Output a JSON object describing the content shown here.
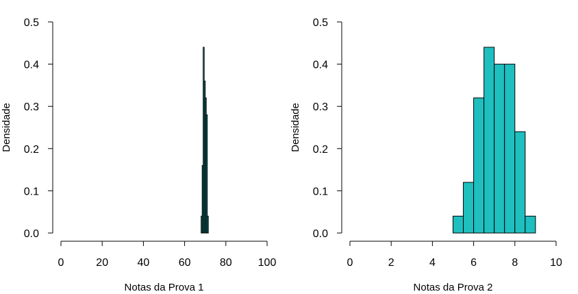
{
  "chart_data": [
    {
      "type": "histogram",
      "xlabel": "Notas da Prova 1",
      "ylabel": "Densidade",
      "xlim": [
        0,
        100
      ],
      "ylim": [
        0,
        0.5
      ],
      "xticks": [
        0,
        20,
        40,
        60,
        80,
        100
      ],
      "yticks": [
        0.0,
        0.1,
        0.2,
        0.3,
        0.4,
        0.5
      ],
      "xtick_labels": [
        "0",
        "20",
        "40",
        "60",
        "80",
        "100"
      ],
      "ytick_labels": [
        "0.0",
        "0.1",
        "0.2",
        "0.3",
        "0.4",
        "0.5"
      ],
      "bins": [
        {
          "x0": 68.0,
          "x1": 68.5,
          "density": 0.04
        },
        {
          "x0": 68.5,
          "x1": 69.0,
          "density": 0.16
        },
        {
          "x0": 69.0,
          "x1": 69.5,
          "density": 0.44
        },
        {
          "x0": 69.5,
          "x1": 70.0,
          "density": 0.36
        },
        {
          "x0": 70.0,
          "x1": 70.5,
          "density": 0.32
        },
        {
          "x0": 70.5,
          "x1": 71.0,
          "density": 0.28
        },
        {
          "x0": 71.0,
          "x1": 71.5,
          "density": 0.04
        }
      ],
      "bar_color": "#1FBFBF",
      "grid": false
    },
    {
      "type": "histogram",
      "xlabel": "Notas da Prova 2",
      "ylabel": "Densidade",
      "xlim": [
        0,
        10
      ],
      "ylim": [
        0,
        0.5
      ],
      "xticks": [
        0,
        2,
        4,
        6,
        8,
        10
      ],
      "yticks": [
        0.0,
        0.1,
        0.2,
        0.3,
        0.4,
        0.5
      ],
      "xtick_labels": [
        "0",
        "2",
        "4",
        "6",
        "8",
        "10"
      ],
      "ytick_labels": [
        "0.0",
        "0.1",
        "0.2",
        "0.3",
        "0.4",
        "0.5"
      ],
      "bins": [
        {
          "x0": 5.0,
          "x1": 5.5,
          "density": 0.04
        },
        {
          "x0": 5.5,
          "x1": 6.0,
          "density": 0.12
        },
        {
          "x0": 6.0,
          "x1": 6.5,
          "density": 0.32
        },
        {
          "x0": 6.5,
          "x1": 7.0,
          "density": 0.44
        },
        {
          "x0": 7.0,
          "x1": 7.5,
          "density": 0.4
        },
        {
          "x0": 7.5,
          "x1": 8.0,
          "density": 0.4
        },
        {
          "x0": 8.0,
          "x1": 8.5,
          "density": 0.24
        },
        {
          "x0": 8.5,
          "x1": 9.0,
          "density": 0.04
        }
      ],
      "bar_color": "#1FBFBF",
      "grid": false
    }
  ]
}
